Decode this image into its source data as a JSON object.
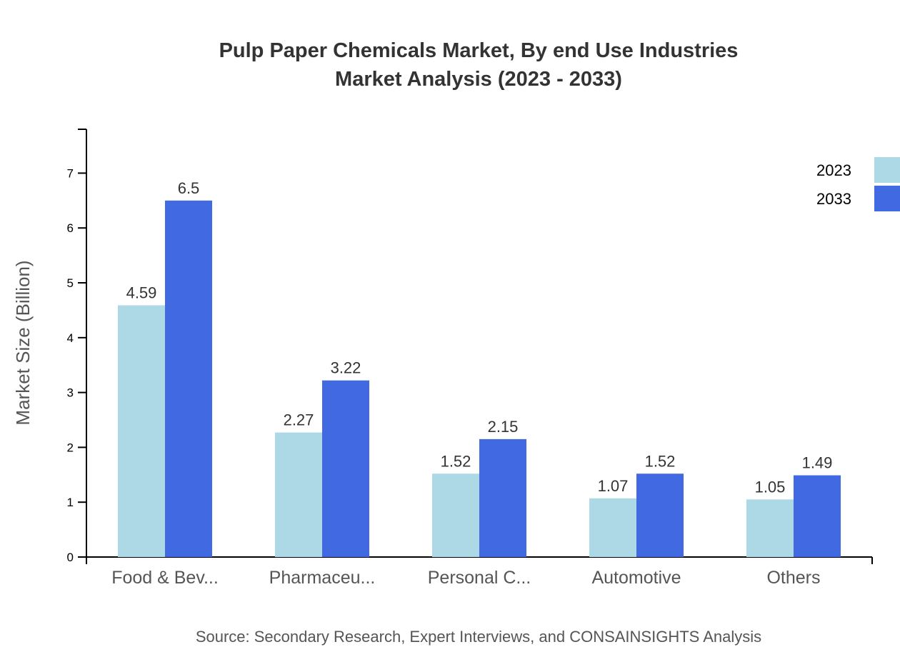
{
  "chart_data": {
    "type": "bar",
    "title": "Pulp Paper Chemicals Market, By end Use Industries",
    "subtitle": "Market Analysis (2023 - 2033)",
    "xlabel": "",
    "ylabel": "Market Size (Billion)",
    "categories": [
      "Food & Bev...",
      "Pharmaceu...",
      "Personal C...",
      "Automotive",
      "Others"
    ],
    "series": [
      {
        "name": "2023",
        "color": "#add8e6",
        "values": [
          4.59,
          2.27,
          1.52,
          1.07,
          1.05
        ]
      },
      {
        "name": "2033",
        "color": "#4169e1",
        "values": [
          6.5,
          3.22,
          2.15,
          1.52,
          1.49
        ]
      }
    ],
    "ylim": [
      0,
      7.8
    ],
    "yticks": [
      0,
      1,
      2,
      3,
      4,
      5,
      6,
      7
    ],
    "grid": false,
    "legend": "top-right"
  },
  "source": "Source: Secondary Research, Expert Interviews, and CONSAINSIGHTS Analysis"
}
